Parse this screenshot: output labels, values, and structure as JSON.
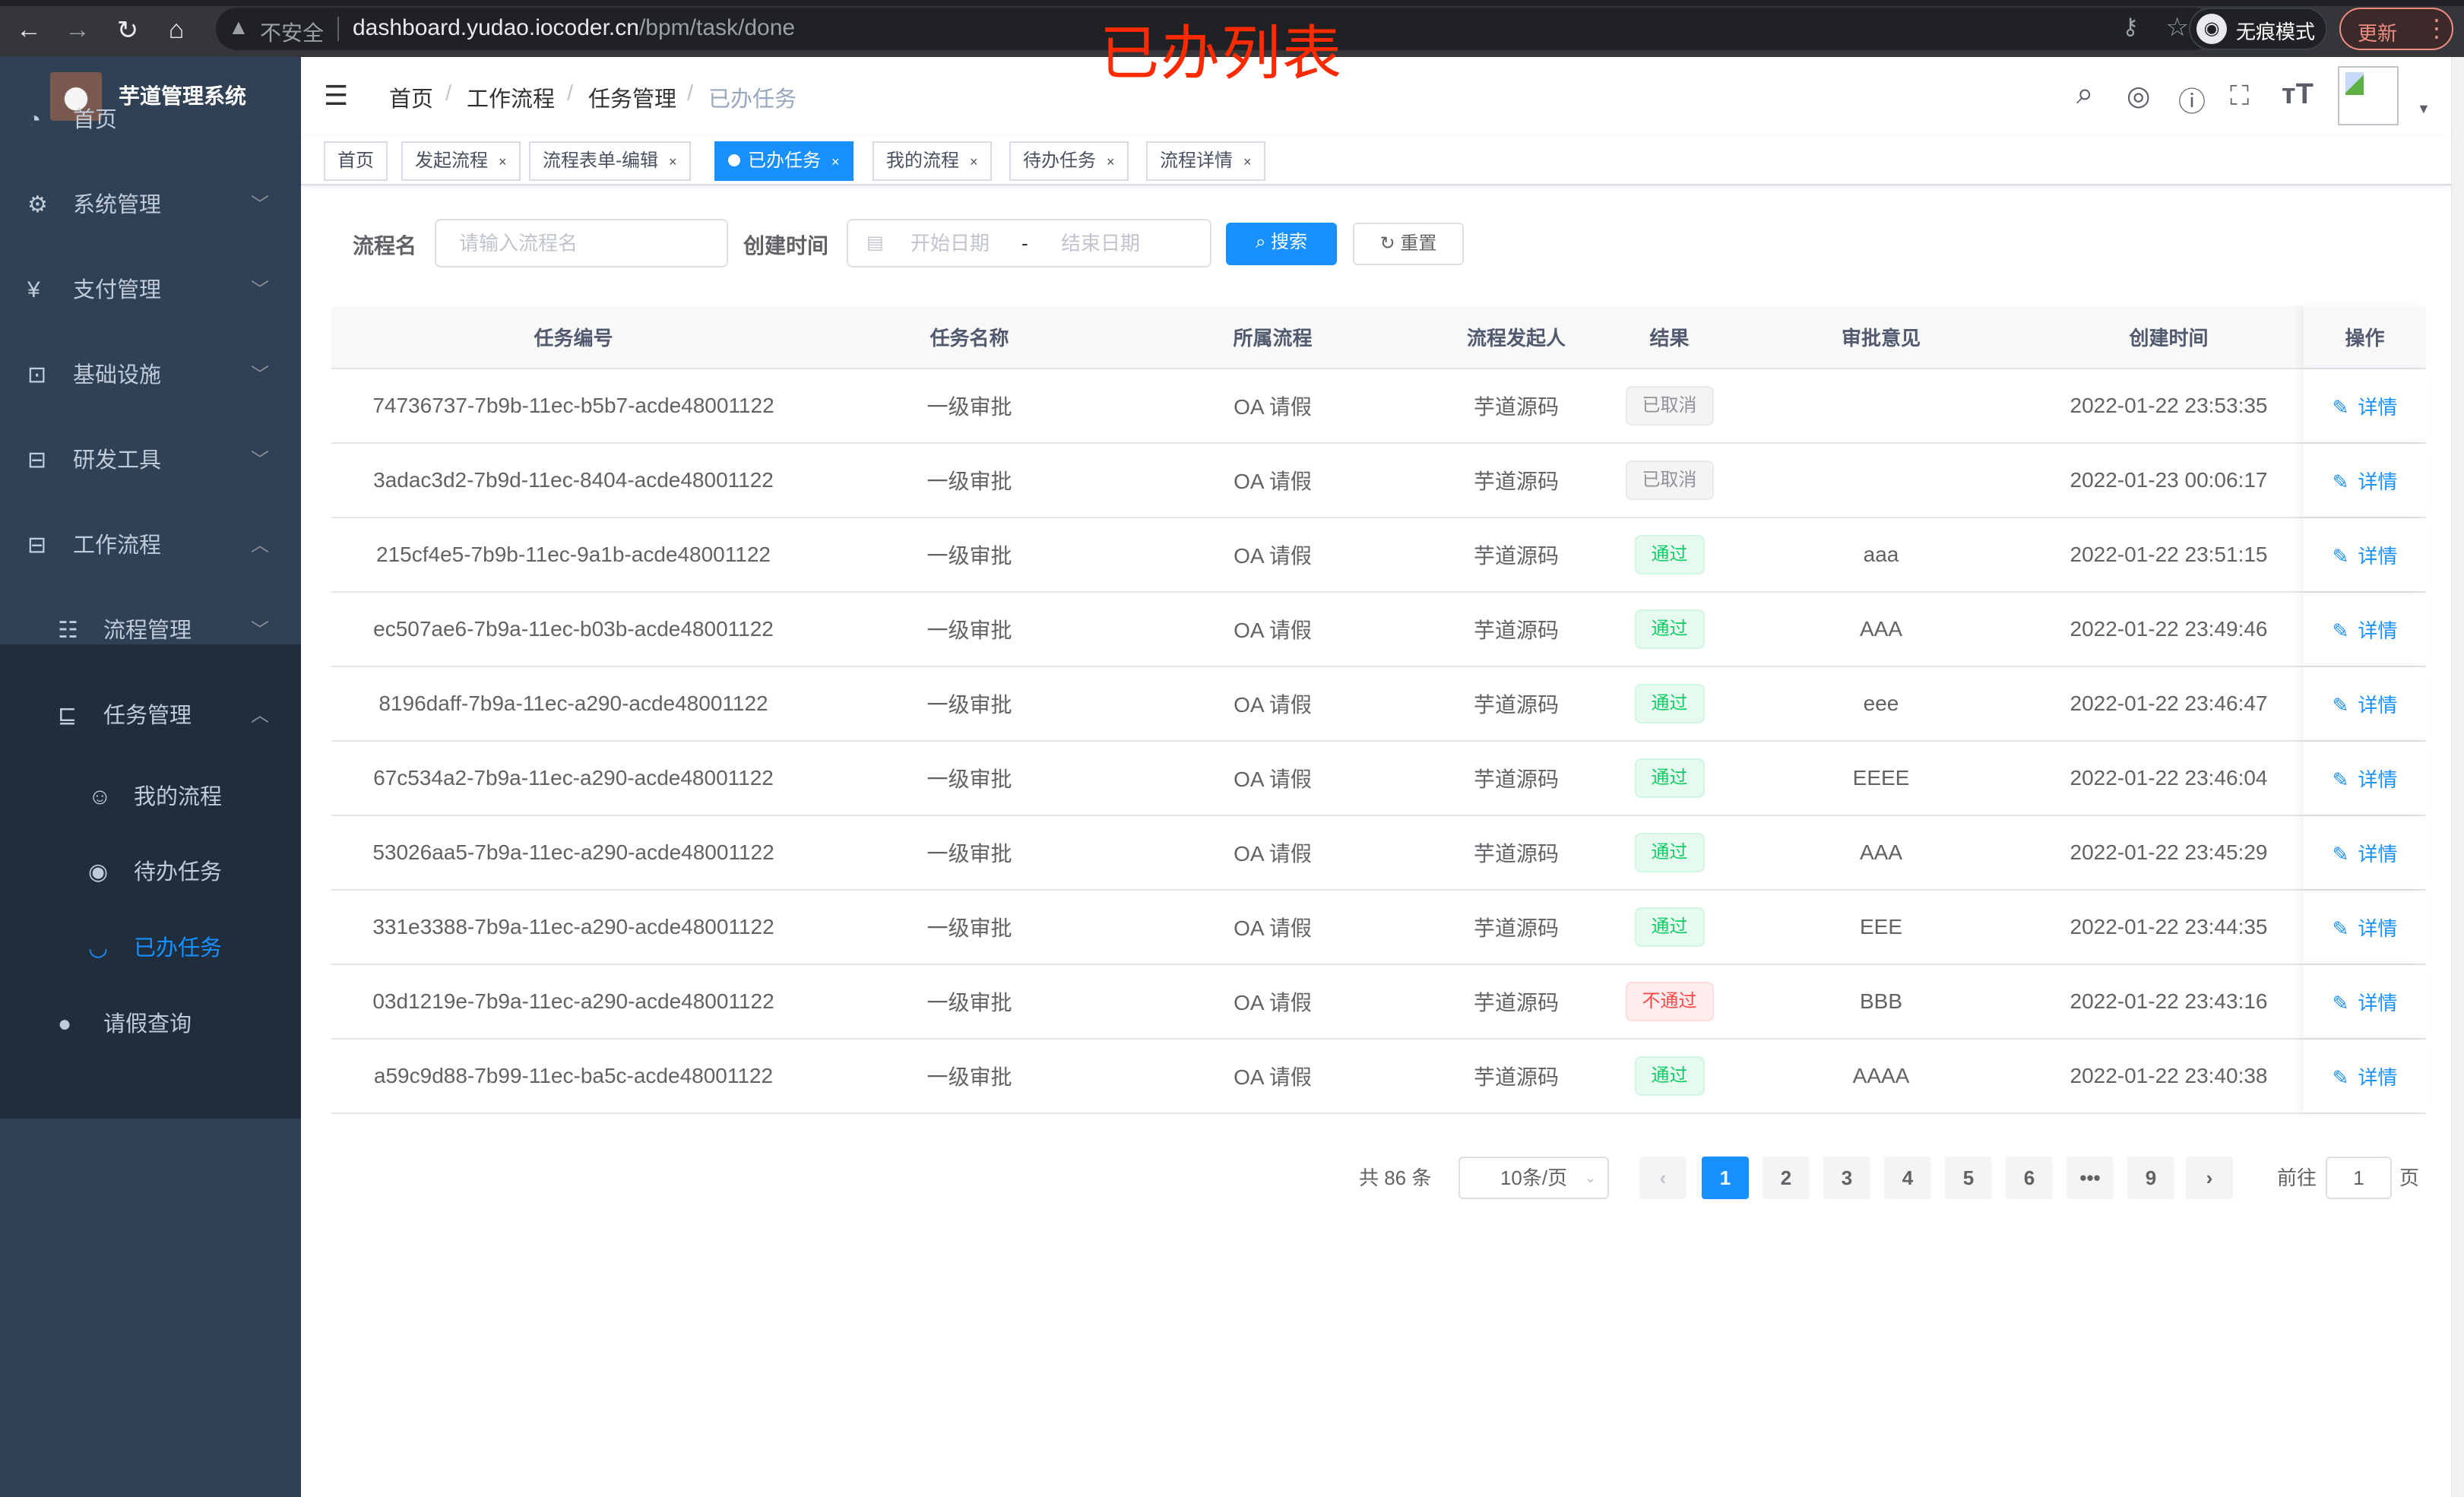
{
  "browser": {
    "insecure_label": "不安全",
    "url_host": "dashboard.yudao.iocoder.cn",
    "url_path": "/bpm/task/done",
    "incognito_label": "无痕模式",
    "update_label": "更新"
  },
  "overlay_title": "已办列表",
  "app": {
    "brand": "芋道管理系统"
  },
  "sidebar": {
    "items": [
      {
        "label": "首页",
        "icon": "dashboard-icon"
      },
      {
        "label": "系统管理",
        "icon": "gear-icon"
      },
      {
        "label": "支付管理",
        "icon": "yen-icon"
      },
      {
        "label": "基础设施",
        "icon": "monitor-icon"
      },
      {
        "label": "研发工具",
        "icon": "toolbox-icon"
      },
      {
        "label": "工作流程",
        "icon": "toolbox-icon"
      },
      {
        "label": "流程管理",
        "icon": "list-icon"
      },
      {
        "label": "任务管理",
        "icon": "task-icon"
      },
      {
        "label": "我的流程",
        "icon": "face-icon"
      },
      {
        "label": "待办任务",
        "icon": "eye-icon"
      },
      {
        "label": "已办任务",
        "icon": "eye-closed-icon"
      },
      {
        "label": "请假查询",
        "icon": "user-icon"
      }
    ]
  },
  "breadcrumb": [
    "首页",
    "工作流程",
    "任务管理",
    "已办任务"
  ],
  "tags": [
    {
      "label": "首页",
      "closable": false
    },
    {
      "label": "发起流程",
      "closable": true
    },
    {
      "label": "流程表单-编辑",
      "closable": true
    },
    {
      "label": "已办任务",
      "closable": true,
      "active": true
    },
    {
      "label": "我的流程",
      "closable": true
    },
    {
      "label": "待办任务",
      "closable": true
    },
    {
      "label": "流程详情",
      "closable": true
    }
  ],
  "search": {
    "name_label": "流程名",
    "name_placeholder": "请输入流程名",
    "time_label": "创建时间",
    "start_placeholder": "开始日期",
    "range_sep": "-",
    "end_placeholder": "结束日期",
    "search_button": "搜索",
    "reset_button": "重置"
  },
  "table": {
    "columns": [
      "任务编号",
      "任务名称",
      "所属流程",
      "流程发起人",
      "结果",
      "审批意见",
      "创建时间",
      "操作"
    ],
    "action_label": "详情",
    "rows": [
      {
        "id": "74736737-7b9b-11ec-b5b7-acde48001122",
        "name": "一级审批",
        "process": "OA 请假",
        "starter": "芋道源码",
        "result": "已取消",
        "status": "cancel",
        "comment": "",
        "time": "2022-01-22 23:53:35"
      },
      {
        "id": "3adac3d2-7b9d-11ec-8404-acde48001122",
        "name": "一级审批",
        "process": "OA 请假",
        "starter": "芋道源码",
        "result": "已取消",
        "status": "cancel",
        "comment": "",
        "time": "2022-01-23 00:06:17"
      },
      {
        "id": "215cf4e5-7b9b-11ec-9a1b-acde48001122",
        "name": "一级审批",
        "process": "OA 请假",
        "starter": "芋道源码",
        "result": "通过",
        "status": "pass",
        "comment": "aaa",
        "time": "2022-01-22 23:51:15"
      },
      {
        "id": "ec507ae6-7b9a-11ec-b03b-acde48001122",
        "name": "一级审批",
        "process": "OA 请假",
        "starter": "芋道源码",
        "result": "通过",
        "status": "pass",
        "comment": "AAA",
        "time": "2022-01-22 23:49:46"
      },
      {
        "id": "8196daff-7b9a-11ec-a290-acde48001122",
        "name": "一级审批",
        "process": "OA 请假",
        "starter": "芋道源码",
        "result": "通过",
        "status": "pass",
        "comment": "eee",
        "time": "2022-01-22 23:46:47"
      },
      {
        "id": "67c534a2-7b9a-11ec-a290-acde48001122",
        "name": "一级审批",
        "process": "OA 请假",
        "starter": "芋道源码",
        "result": "通过",
        "status": "pass",
        "comment": "EEEE",
        "time": "2022-01-22 23:46:04"
      },
      {
        "id": "53026aa5-7b9a-11ec-a290-acde48001122",
        "name": "一级审批",
        "process": "OA 请假",
        "starter": "芋道源码",
        "result": "通过",
        "status": "pass",
        "comment": "AAA",
        "time": "2022-01-22 23:45:29"
      },
      {
        "id": "331e3388-7b9a-11ec-a290-acde48001122",
        "name": "一级审批",
        "process": "OA 请假",
        "starter": "芋道源码",
        "result": "通过",
        "status": "pass",
        "comment": "EEE",
        "time": "2022-01-22 23:44:35"
      },
      {
        "id": "03d1219e-7b9a-11ec-a290-acde48001122",
        "name": "一级审批",
        "process": "OA 请假",
        "starter": "芋道源码",
        "result": "不通过",
        "status": "reject",
        "comment": "BBB",
        "time": "2022-01-22 23:43:16"
      },
      {
        "id": "a59c9d88-7b99-11ec-ba5c-acde48001122",
        "name": "一级审批",
        "process": "OA 请假",
        "starter": "芋道源码",
        "result": "通过",
        "status": "pass",
        "comment": "AAAA",
        "time": "2022-01-22 23:40:38"
      }
    ]
  },
  "pagination": {
    "total_label": "共 86 条",
    "page_size": "10条/页",
    "pages": [
      "1",
      "2",
      "3",
      "4",
      "5",
      "6",
      "•••",
      "9"
    ],
    "current": "1",
    "goto_label": "前往",
    "goto_value": "1",
    "page_suffix": "页"
  },
  "colors": {
    "accent": "#1890ff",
    "sidebar": "#304156",
    "sidebar_sub": "#1f2d3d",
    "pass": "#13ce66",
    "reject": "#ff4949",
    "cancel": "#909399",
    "overlay": "#ff2a00"
  }
}
